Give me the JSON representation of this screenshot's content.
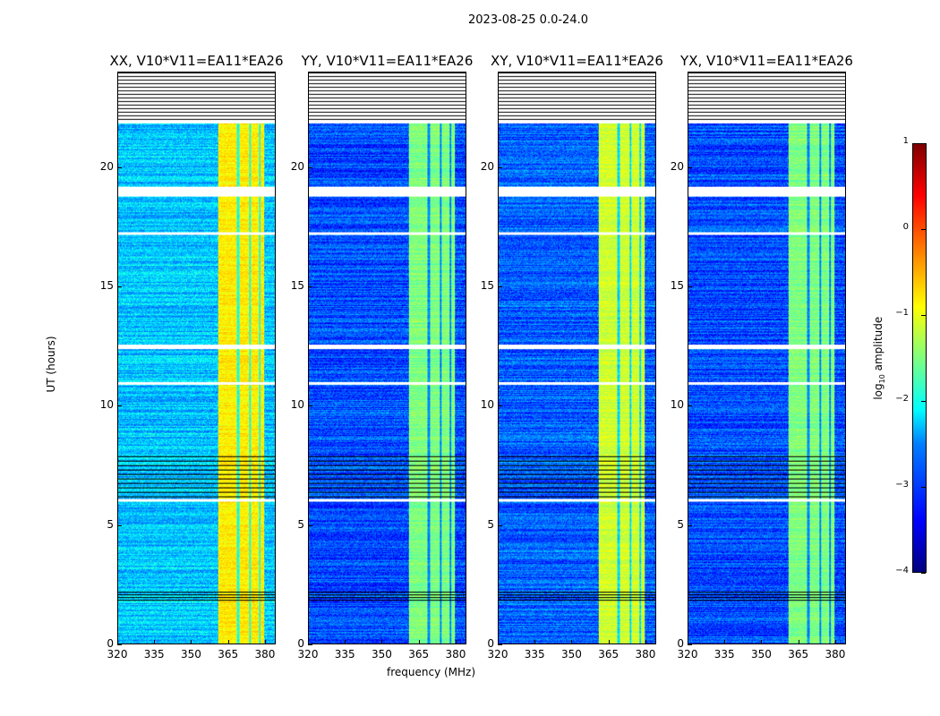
{
  "chart_data": {
    "type": "heatmap",
    "title": "2023-08-25 0.0-24.0",
    "xlabel": "frequency (MHz)",
    "ylabel": "UT (hours)",
    "xlim": [
      320,
      384.4
    ],
    "ylim": [
      0,
      24
    ],
    "xticks": [
      320,
      335,
      350,
      365,
      380
    ],
    "yticks": [
      0,
      5,
      10,
      15,
      20
    ],
    "panels": [
      {
        "title": "XX, V10*V11=EA11*EA26",
        "baseline_log_amp": -2.4,
        "band_log_amp": -0.8
      },
      {
        "title": "YY, V10*V11=EA11*EA26",
        "baseline_log_amp": -3.0,
        "band_log_amp": -1.5
      },
      {
        "title": "XY, V10*V11=EA11*EA26",
        "baseline_log_amp": -2.9,
        "band_log_amp": -1.1
      },
      {
        "title": "YX, V10*V11=EA11*EA26",
        "baseline_log_amp": -3.0,
        "band_log_amp": -1.5
      }
    ],
    "bright_band_mhz": [
      361,
      380
    ],
    "band_gaps_mhz": [
      369,
      374,
      378
    ],
    "flagged_hours": [
      [
        21.9,
        24
      ],
      [
        18.8,
        19.2
      ],
      [
        17.2,
        17.3
      ],
      [
        12.4,
        12.6
      ],
      [
        10.9,
        11.0
      ],
      [
        6.0,
        6.1
      ]
    ],
    "colorbar": {
      "label_prefix": "log",
      "label_sub": "10",
      "label_suffix": " amplitude",
      "range": [
        -4,
        1
      ],
      "ticks": [
        -4,
        -3,
        -2,
        -1,
        0,
        1
      ]
    }
  }
}
